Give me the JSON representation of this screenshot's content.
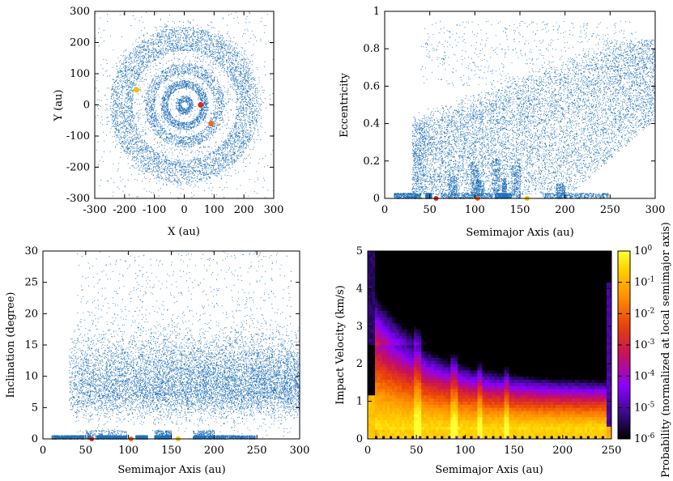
{
  "chart_data": [
    {
      "type": "scatter",
      "panel": "top-left",
      "title": "",
      "xlabel": "X (au)",
      "ylabel": "Y (au)",
      "xlim": [
        -300,
        300
      ],
      "ylim": [
        -300,
        300
      ],
      "xticks": [
        -300,
        -200,
        -100,
        0,
        100,
        200,
        300
      ],
      "yticks": [
        -300,
        -200,
        -100,
        0,
        100,
        200,
        300
      ],
      "grid": false,
      "series": [
        {
          "name": "particles",
          "color": "#1f6fb8",
          "rings_au": [
            [
              10,
              30
            ],
            [
              55,
              80
            ],
            [
              100,
              135
            ],
            [
              175,
              250
            ]
          ]
        },
        {
          "name": "planet-red",
          "color": "#d62d20",
          "points": [
            [
              55,
              0
            ]
          ]
        },
        {
          "name": "planet-orange",
          "color": "#ee6a1c",
          "points": [
            [
              90,
              -60
            ]
          ]
        },
        {
          "name": "planet-yellow",
          "color": "#f2c200",
          "points": [
            [
              -160,
              48
            ]
          ]
        }
      ]
    },
    {
      "type": "scatter",
      "panel": "top-right",
      "xlabel": "Semimajor Axis (au)",
      "ylabel": "Eccentricity",
      "xlim": [
        0,
        300
      ],
      "ylim": [
        0,
        1
      ],
      "xticks": [
        0,
        50,
        100,
        150,
        200,
        250,
        300
      ],
      "yticks": [
        0,
        0.2,
        0.4,
        0.6,
        0.8,
        1
      ],
      "ytick_labels": [
        "0",
        "0.2",
        "0.4",
        "0.6",
        "0.8",
        "1"
      ],
      "grid": false,
      "series": [
        {
          "name": "particles",
          "color": "#1f6fb8"
        },
        {
          "name": "planets",
          "points": [
            [
              57,
              0.0,
              "#d62d20"
            ],
            [
              103,
              0.0,
              "#ee6a1c"
            ],
            [
              158,
              0.0,
              "#f2c200"
            ]
          ]
        }
      ]
    },
    {
      "type": "scatter",
      "panel": "bottom-left",
      "xlabel": "Semimajor Axis (au)",
      "ylabel": "Inclination (degree)",
      "xlim": [
        0,
        300
      ],
      "ylim": [
        0,
        30
      ],
      "xticks": [
        0,
        50,
        100,
        150,
        200,
        250,
        300
      ],
      "yticks": [
        0,
        5,
        10,
        15,
        20,
        25,
        30
      ],
      "grid": false,
      "series": [
        {
          "name": "particles",
          "color": "#1f6fb8"
        },
        {
          "name": "planets",
          "points": [
            [
              57,
              0.0,
              "#d62d20"
            ],
            [
              103,
              0.0,
              "#ee6a1c"
            ],
            [
              158,
              0.0,
              "#f2c200"
            ]
          ]
        }
      ]
    },
    {
      "type": "heatmap",
      "panel": "bottom-right",
      "xlabel": "Semimajor Axis (au)",
      "ylabel": "Impact Velocity (km/s)",
      "xlim": [
        0,
        250
      ],
      "ylim": [
        0,
        5
      ],
      "xticks": [
        0,
        50,
        100,
        150,
        200,
        250
      ],
      "yticks": [
        0,
        1,
        2,
        3,
        4,
        5
      ],
      "colorbar": {
        "label": "Probability (normalized at local semimajor axis)",
        "ticks": [
          {
            "base": "10",
            "exp": "0"
          },
          {
            "base": "10",
            "exp": "-1"
          },
          {
            "base": "10",
            "exp": "-2"
          },
          {
            "base": "10",
            "exp": "-3"
          },
          {
            "base": "10",
            "exp": "-4"
          },
          {
            "base": "10",
            "exp": "-5"
          },
          {
            "base": "10",
            "exp": "-6"
          }
        ],
        "range_log10": [
          -6,
          0
        ],
        "colors": [
          "#000000",
          "#3a0a8c",
          "#8b00ff",
          "#c8105a",
          "#e8400b",
          "#ff8c00",
          "#ffd000",
          "#ffff33"
        ]
      }
    }
  ]
}
